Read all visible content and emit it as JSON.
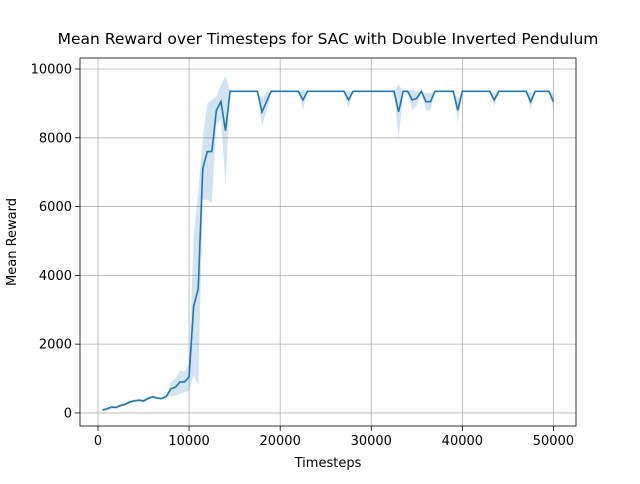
{
  "chart_data": {
    "type": "line",
    "title": "Mean Reward over Timesteps for SAC with Double Inverted Pendulum",
    "x_label": "Timesteps",
    "y_label": "Mean Reward",
    "x": [
      500,
      1000,
      1500,
      2000,
      2500,
      3000,
      3500,
      4000,
      4500,
      5000,
      5500,
      6000,
      6500,
      7000,
      7500,
      8000,
      8500,
      9000,
      9500,
      10000,
      10500,
      11000,
      11500,
      12000,
      12500,
      13000,
      13500,
      14000,
      14500,
      15000,
      15500,
      16000,
      16500,
      17000,
      17500,
      18000,
      18500,
      19000,
      19500,
      20000,
      20500,
      21000,
      21500,
      22000,
      22500,
      23000,
      23500,
      24000,
      24500,
      25000,
      25500,
      26000,
      26500,
      27000,
      27500,
      28000,
      28500,
      29000,
      29500,
      30000,
      30500,
      31000,
      31500,
      32000,
      32500,
      33000,
      33500,
      34000,
      34500,
      35000,
      35500,
      36000,
      36500,
      37000,
      37500,
      38000,
      38500,
      39000,
      39500,
      40000,
      40500,
      41000,
      41500,
      42000,
      42500,
      43000,
      43500,
      44000,
      44500,
      45000,
      45500,
      46000,
      46500,
      47000,
      47500,
      48000,
      48500,
      49000,
      49500,
      50000
    ],
    "series": [
      {
        "color": "#1f77b4",
        "values": [
          80,
          120,
          170,
          160,
          220,
          250,
          320,
          350,
          370,
          350,
          420,
          470,
          430,
          420,
          480,
          700,
          750,
          900,
          900,
          1050,
          3100,
          3600,
          7100,
          7600,
          7600,
          8800,
          9050,
          8200,
          9350,
          9350,
          9350,
          9350,
          9350,
          9350,
          9350,
          8750,
          9050,
          9350,
          9350,
          9350,
          9350,
          9350,
          9350,
          9350,
          9100,
          9350,
          9350,
          9350,
          9350,
          9350,
          9350,
          9350,
          9350,
          9350,
          9100,
          9350,
          9350,
          9350,
          9350,
          9350,
          9350,
          9350,
          9350,
          9350,
          9350,
          8750,
          9350,
          9350,
          9100,
          9150,
          9350,
          9050,
          9050,
          9350,
          9350,
          9350,
          9350,
          9350,
          8800,
          9350,
          9350,
          9350,
          9350,
          9350,
          9350,
          9350,
          9100,
          9350,
          9350,
          9350,
          9350,
          9350,
          9350,
          9350,
          9050,
          9350,
          9350,
          9350,
          9350,
          9050
        ],
        "std": [
          40,
          40,
          40,
          40,
          40,
          40,
          40,
          40,
          40,
          40,
          40,
          40,
          40,
          40,
          40,
          200,
          250,
          350,
          300,
          400,
          2000,
          2800,
          900,
          1400,
          1500,
          400,
          500,
          1600,
          0,
          0,
          0,
          0,
          0,
          0,
          0,
          400,
          300,
          0,
          0,
          0,
          0,
          0,
          0,
          0,
          300,
          0,
          0,
          0,
          0,
          0,
          0,
          0,
          0,
          0,
          250,
          0,
          0,
          0,
          0,
          0,
          0,
          0,
          0,
          0,
          0,
          800,
          0,
          0,
          300,
          200,
          0,
          250,
          250,
          0,
          0,
          0,
          0,
          0,
          350,
          0,
          0,
          0,
          0,
          0,
          0,
          0,
          200,
          0,
          0,
          0,
          0,
          0,
          0,
          0,
          250,
          0,
          0,
          0,
          0,
          250
        ]
      }
    ],
    "xlim": [
      -1975,
      52475
    ],
    "ylim": [
      -380,
      10320
    ],
    "xticks": [
      0,
      10000,
      20000,
      30000,
      40000,
      50000
    ],
    "yticks": [
      0,
      2000,
      4000,
      6000,
      8000,
      10000
    ],
    "grid": true
  }
}
